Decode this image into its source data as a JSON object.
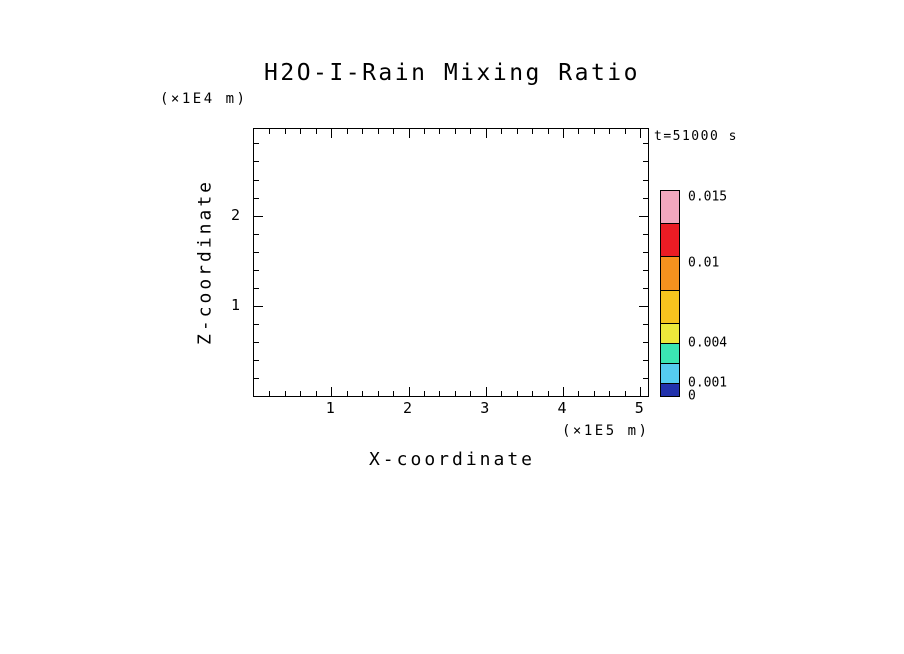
{
  "figure": {
    "background": "#FFFFFF",
    "text_color": "#000000"
  },
  "chart_data": {
    "type": "heatmap",
    "title": "H2O-I-Rain Mixing Ratio",
    "time_annotation": "t=51000 s",
    "xlabel": "X-coordinate",
    "x_units_label": "(×1E5 m)",
    "ylabel": "Z-coordinate",
    "y_units_label": "(×1E4 m)",
    "xlim": [
      0,
      5.1
    ],
    "ylim": [
      0,
      2.96
    ],
    "x_major_ticks": [
      1,
      2,
      3,
      4,
      5
    ],
    "x_minor_tick_step": 0.2,
    "y_major_ticks": [
      1,
      2
    ],
    "y_minor_tick_step": 0.2,
    "grid": false,
    "plot_field": "empty — no rain mixing-ratio contours visible at this time step",
    "colorbar": {
      "range": [
        0,
        0.0155
      ],
      "tick_values": [
        0.015,
        0.01,
        0.004,
        0.001,
        0
      ],
      "tick_labels": [
        "0.015",
        "0.01",
        "0.004",
        "0.001",
        "0"
      ],
      "level_boundaries": [
        0,
        0.001,
        0.0025,
        0.004,
        0.0055,
        0.008,
        0.0105,
        0.013,
        0.0155
      ],
      "colors_bottom_to_top": [
        "#2232AC",
        "#55CCF0",
        "#3BE6B2",
        "#EDE93B",
        "#F7C41E",
        "#F6921E",
        "#EB1C24",
        "#F3A7BE"
      ]
    }
  }
}
